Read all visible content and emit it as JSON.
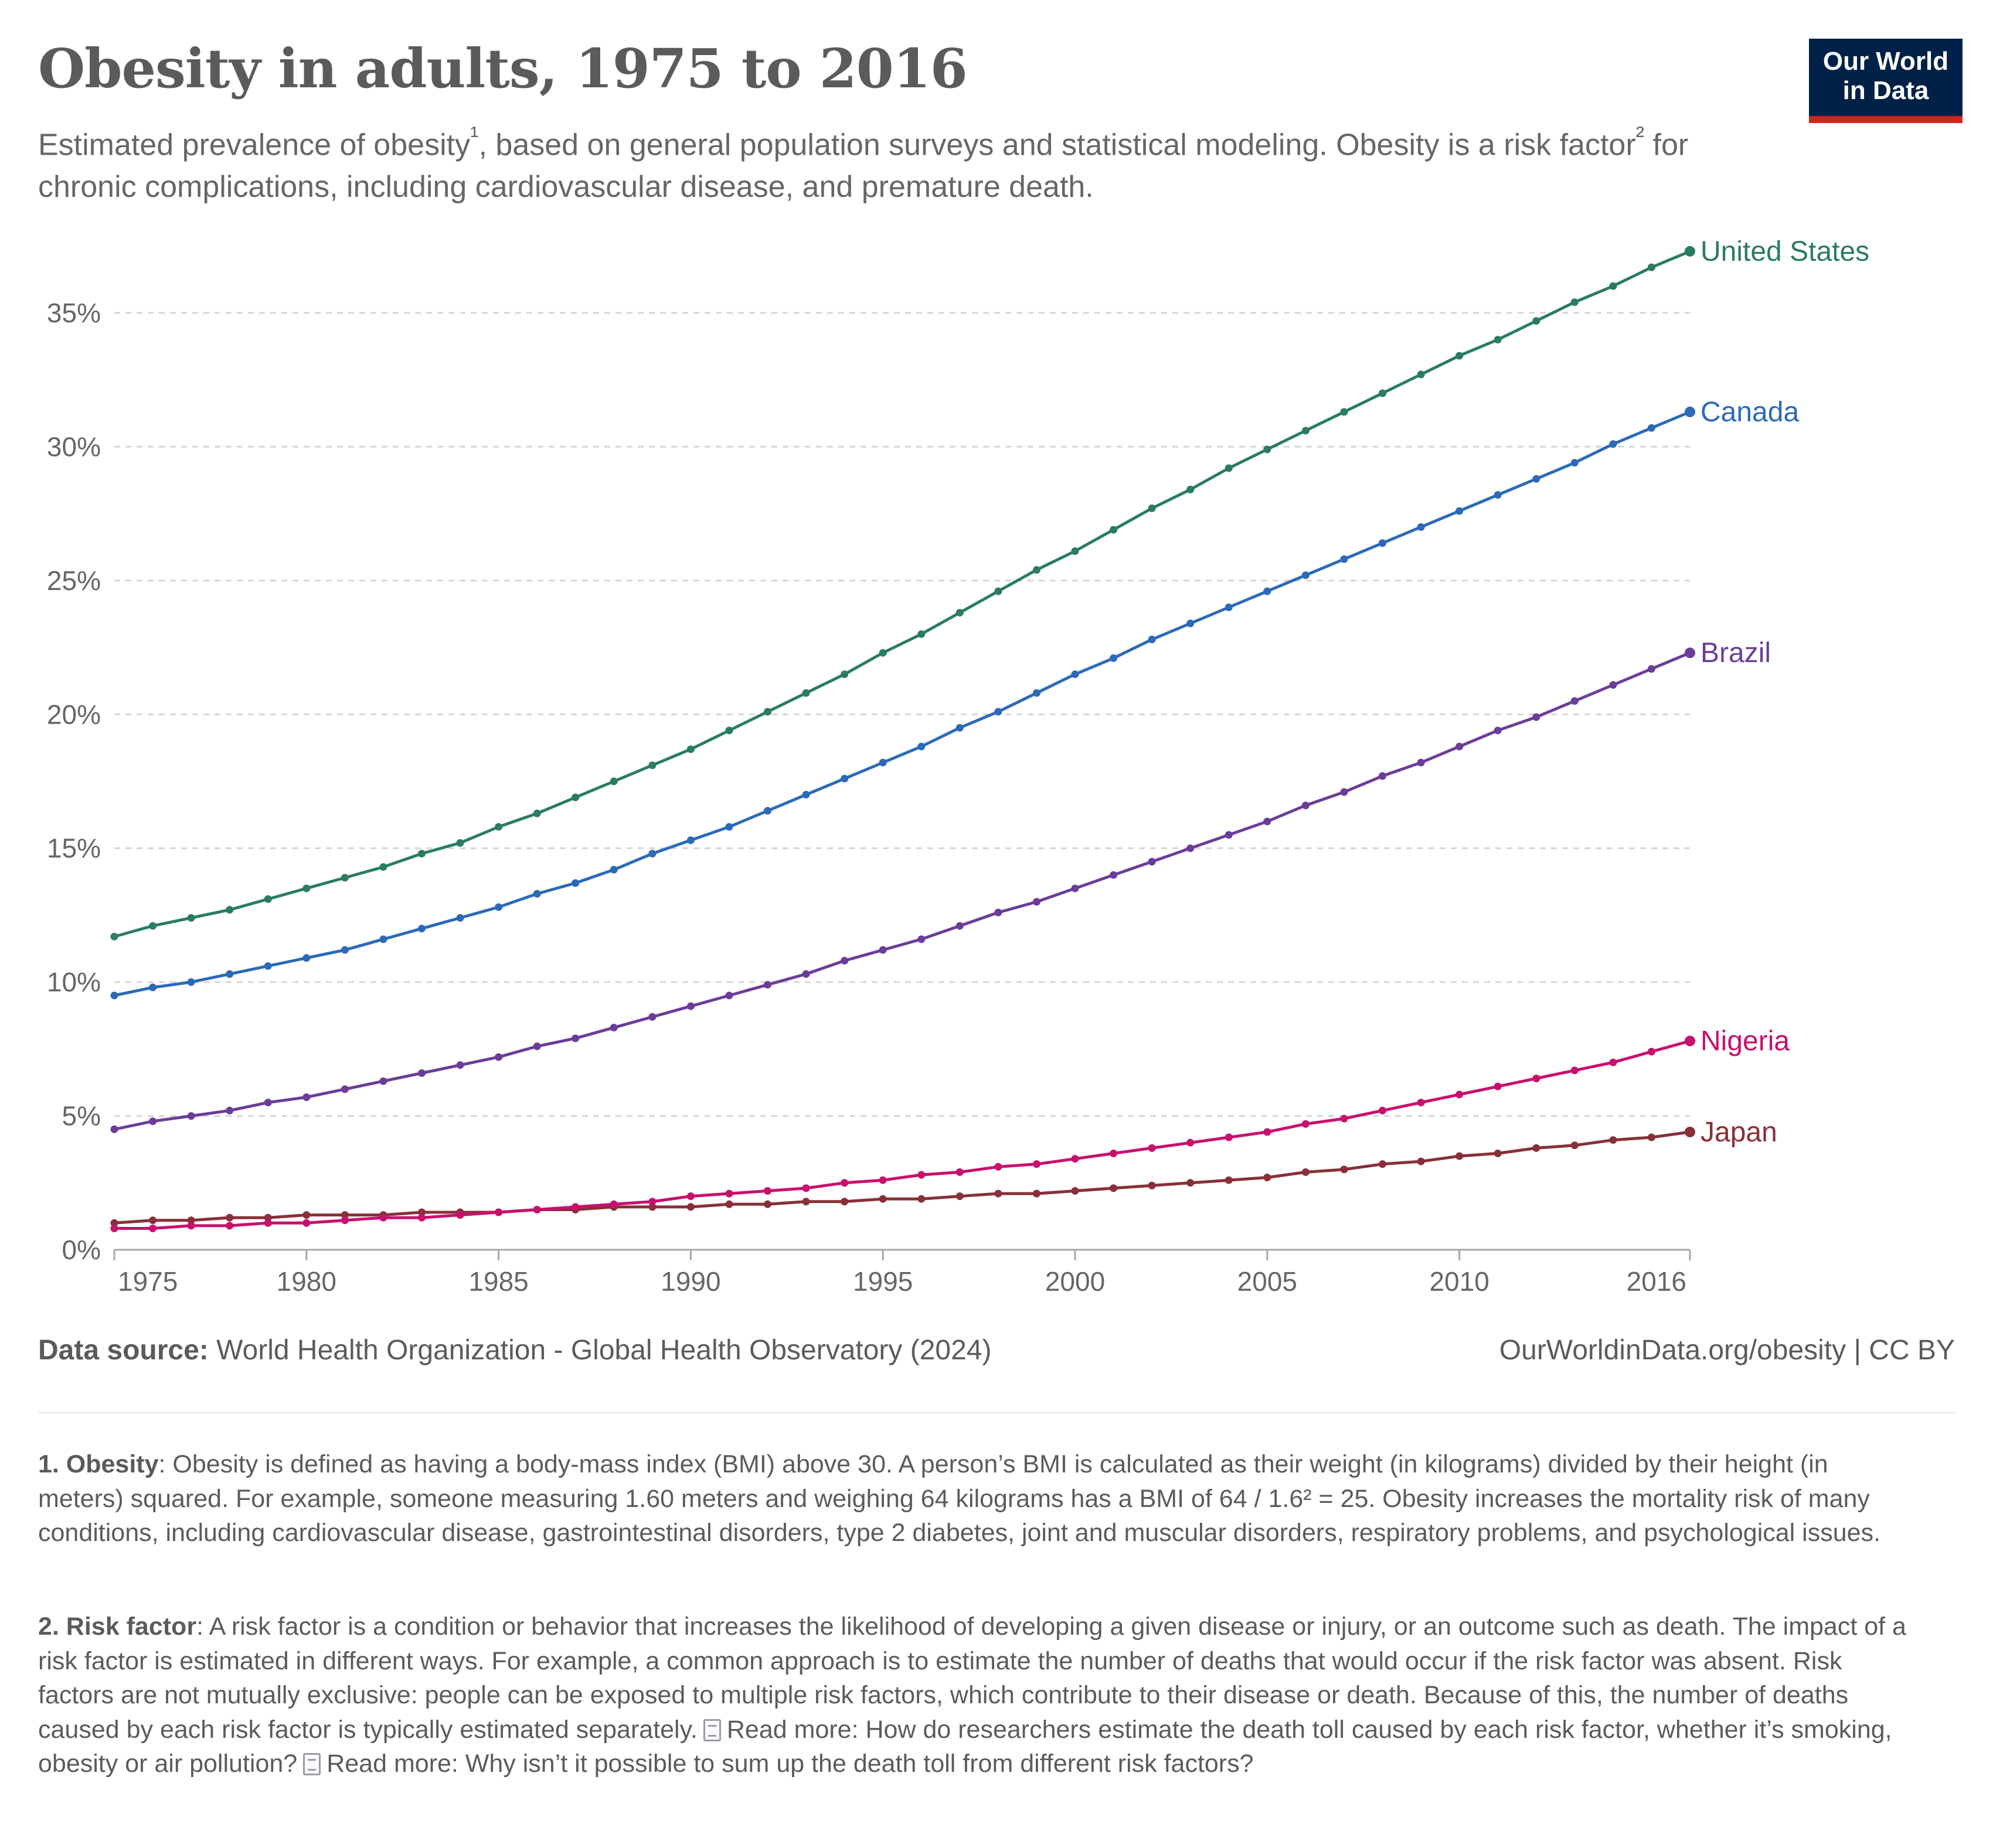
{
  "header": {
    "title": "Obesity in adults, 1975 to 2016",
    "subtitle_part1": "Estimated prevalence of obesity",
    "sup1": "¹",
    "subtitle_part2": ", based on general population surveys and statistical modeling. Obesity is a risk factor",
    "sup2": "²",
    "subtitle_part3": " for chronic complications, including cardiovascular disease, and premature death."
  },
  "logo": {
    "line1": "Our World",
    "line2": "in Data",
    "bg_color": "#002147",
    "accent_color": "#ce261e"
  },
  "chart_data": {
    "type": "line",
    "title": "Obesity in adults, 1975 to 2016",
    "x": [
      1975,
      1976,
      1977,
      1978,
      1979,
      1980,
      1981,
      1982,
      1983,
      1984,
      1985,
      1986,
      1987,
      1988,
      1989,
      1990,
      1991,
      1992,
      1993,
      1994,
      1995,
      1996,
      1997,
      1998,
      1999,
      2000,
      2001,
      2002,
      2003,
      2004,
      2005,
      2006,
      2007,
      2008,
      2009,
      2010,
      2011,
      2012,
      2013,
      2014,
      2015,
      2016
    ],
    "xlim": [
      1975,
      2016
    ],
    "ylim": [
      0,
      37.5
    ],
    "grid": true,
    "legend": "right",
    "x_ticks": [
      "1975",
      "1980",
      "1985",
      "1990",
      "1995",
      "2000",
      "2005",
      "2010",
      "2016"
    ],
    "y_ticks": [
      "0%",
      "5%",
      "10%",
      "15%",
      "20%",
      "25%",
      "30%",
      "35%"
    ],
    "series": [
      {
        "name": "United States",
        "color": "#2a7c62",
        "values": [
          11.7,
          12.1,
          12.4,
          12.7,
          13.1,
          13.5,
          13.9,
          14.3,
          14.8,
          15.2,
          15.8,
          16.3,
          16.9,
          17.5,
          18.1,
          18.7,
          19.4,
          20.1,
          20.8,
          21.5,
          22.3,
          23.0,
          23.8,
          24.6,
          25.4,
          26.1,
          26.9,
          27.7,
          28.4,
          29.2,
          29.9,
          30.6,
          31.3,
          32.0,
          32.7,
          33.4,
          34.0,
          34.7,
          35.4,
          36.0,
          36.7,
          37.3
        ]
      },
      {
        "name": "Canada",
        "color": "#2c6ab8",
        "values": [
          9.5,
          9.8,
          10.0,
          10.3,
          10.6,
          10.9,
          11.2,
          11.6,
          12.0,
          12.4,
          12.8,
          13.3,
          13.7,
          14.2,
          14.8,
          15.3,
          15.8,
          16.4,
          17.0,
          17.6,
          18.2,
          18.8,
          19.5,
          20.1,
          20.8,
          21.5,
          22.1,
          22.8,
          23.4,
          24.0,
          24.6,
          25.2,
          25.8,
          26.4,
          27.0,
          27.6,
          28.2,
          28.8,
          29.4,
          30.1,
          30.7,
          31.3
        ]
      },
      {
        "name": "Brazil",
        "color": "#6b3d99",
        "values": [
          4.5,
          4.8,
          5.0,
          5.2,
          5.5,
          5.7,
          6.0,
          6.3,
          6.6,
          6.9,
          7.2,
          7.6,
          7.9,
          8.3,
          8.7,
          9.1,
          9.5,
          9.9,
          10.3,
          10.8,
          11.2,
          11.6,
          12.1,
          12.6,
          13.0,
          13.5,
          14.0,
          14.5,
          15.0,
          15.5,
          16.0,
          16.6,
          17.1,
          17.7,
          18.2,
          18.8,
          19.4,
          19.9,
          20.5,
          21.1,
          21.7,
          22.3
        ]
      },
      {
        "name": "Nigeria",
        "color": "#c8106e",
        "values": [
          0.8,
          0.8,
          0.9,
          0.9,
          1.0,
          1.0,
          1.1,
          1.2,
          1.2,
          1.3,
          1.4,
          1.5,
          1.6,
          1.7,
          1.8,
          2.0,
          2.1,
          2.2,
          2.3,
          2.5,
          2.6,
          2.8,
          2.9,
          3.1,
          3.2,
          3.4,
          3.6,
          3.8,
          4.0,
          4.2,
          4.4,
          4.7,
          4.9,
          5.2,
          5.5,
          5.8,
          6.1,
          6.4,
          6.7,
          7.0,
          7.4,
          7.8
        ]
      },
      {
        "name": "Japan",
        "color": "#883039",
        "values": [
          1.0,
          1.1,
          1.1,
          1.2,
          1.2,
          1.3,
          1.3,
          1.3,
          1.4,
          1.4,
          1.4,
          1.5,
          1.5,
          1.6,
          1.6,
          1.6,
          1.7,
          1.7,
          1.8,
          1.8,
          1.9,
          1.9,
          2.0,
          2.1,
          2.1,
          2.2,
          2.3,
          2.4,
          2.5,
          2.6,
          2.7,
          2.9,
          3.0,
          3.2,
          3.3,
          3.5,
          3.6,
          3.8,
          3.9,
          4.1,
          4.2,
          4.4
        ]
      }
    ]
  },
  "footer": {
    "source_label": "Data source:",
    "source_text": "World Health Organization - Global Health Observatory (2024)",
    "credit": "OurWorldinData.org/obesity | CC BY"
  },
  "notes": {
    "n1_label": "1. Obesity",
    "n1_text": ": Obesity is defined as having a body-mass index (BMI) above 30. A person’s BMI is calculated as their weight (in kilograms) divided by their height (in meters) squared. For example, someone measuring 1.60 meters and weighing 64 kilograms has a BMI of 64 / 1.6² = 25. Obesity increases the mortality risk of many conditions, including cardiovascular disease, gastrointestinal disorders, type 2 diabetes, joint and muscular disorders, respiratory problems, and psychological issues.",
    "n2_label": "2. Risk factor",
    "n2_text": ": A risk factor is a condition or behavior that increases the likelihood of developing a given disease or injury, or an outcome such as death. The impact of a risk factor is estimated in different ways. For example, a common approach is to estimate the number of deaths that would occur if the risk factor was absent. Risk factors are not mutually exclusive: people can be exposed to multiple risk factors, which contribute to their disease or death. Because of this, the number of deaths caused by each risk factor is typically estimated separately.",
    "n2_link1": "Read more: How do researchers estimate the death toll caused by each risk factor, whether it’s smoking, obesity or air pollution?",
    "n2_link2": "Read more: Why isn’t it possible to sum up the death toll from different risk factors?"
  }
}
